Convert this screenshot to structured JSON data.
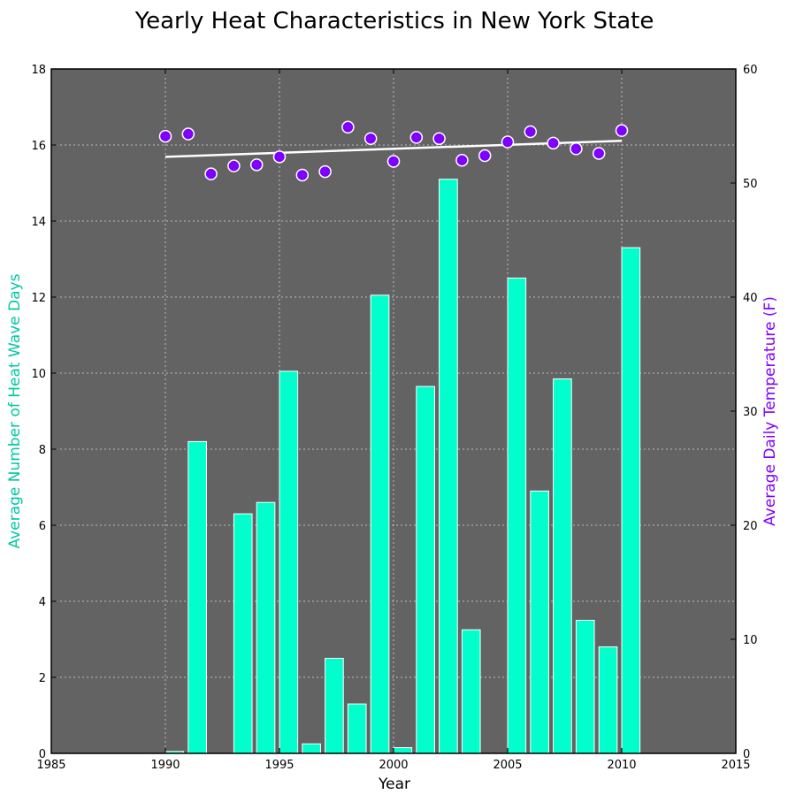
{
  "chart_data": {
    "type": "bar",
    "title": "Yearly Heat Characteristics in New York State",
    "xlabel": "Year",
    "ylabel": "Average Number of Heat Wave Days",
    "y2label": "Average Daily Temperature (F)",
    "xlim": [
      1985,
      2015
    ],
    "ylim": [
      0,
      18
    ],
    "y2lim": [
      0,
      60
    ],
    "xticks": [
      "1985",
      "1990",
      "1995",
      "2000",
      "2005",
      "2010",
      "2015"
    ],
    "yticks": [
      "0",
      "2",
      "4",
      "6",
      "8",
      "10",
      "12",
      "14",
      "16",
      "18"
    ],
    "y2ticks": [
      "0",
      "10",
      "20",
      "30",
      "40",
      "50",
      "60"
    ],
    "grid": true,
    "colors": {
      "plot_background": "#636363",
      "bars": "#00ffcc",
      "bar_edge": "#ffffff",
      "points": "#7f00ff",
      "point_edge": "#ffffff",
      "trend_line": "#ffffff",
      "left_axis_label": "#00c8a0",
      "right_axis_label": "#7f00ff"
    },
    "series": [
      {
        "type": "bar",
        "axis": "left",
        "x": [
          1990,
          1991,
          1992,
          1993,
          1994,
          1995,
          1996,
          1997,
          1998,
          1999,
          2000,
          2001,
          2002,
          2003,
          2004,
          2005,
          2006,
          2007,
          2008,
          2009,
          2010
        ],
        "values": [
          0.05,
          8.2,
          0,
          6.3,
          6.6,
          10.05,
          0.25,
          2.5,
          1.3,
          12.05,
          0.15,
          9.65,
          15.1,
          3.25,
          0,
          12.5,
          6.9,
          9.85,
          3.5,
          2.8,
          13.3
        ]
      },
      {
        "type": "scatter",
        "axis": "right",
        "x": [
          1990,
          1991,
          1992,
          1993,
          1994,
          1995,
          1996,
          1997,
          1998,
          1999,
          2000,
          2001,
          2002,
          2003,
          2004,
          2005,
          2006,
          2007,
          2008,
          2009,
          2010
        ],
        "values": [
          54.1,
          54.3,
          50.8,
          51.5,
          51.6,
          52.3,
          50.7,
          51.0,
          54.9,
          53.9,
          51.9,
          54.0,
          53.9,
          52.0,
          52.4,
          53.6,
          54.5,
          53.5,
          53.0,
          52.6,
          54.6
        ]
      },
      {
        "type": "line",
        "axis": "right",
        "x": [
          1990,
          2010
        ],
        "values": [
          52.3,
          53.7
        ]
      }
    ]
  }
}
